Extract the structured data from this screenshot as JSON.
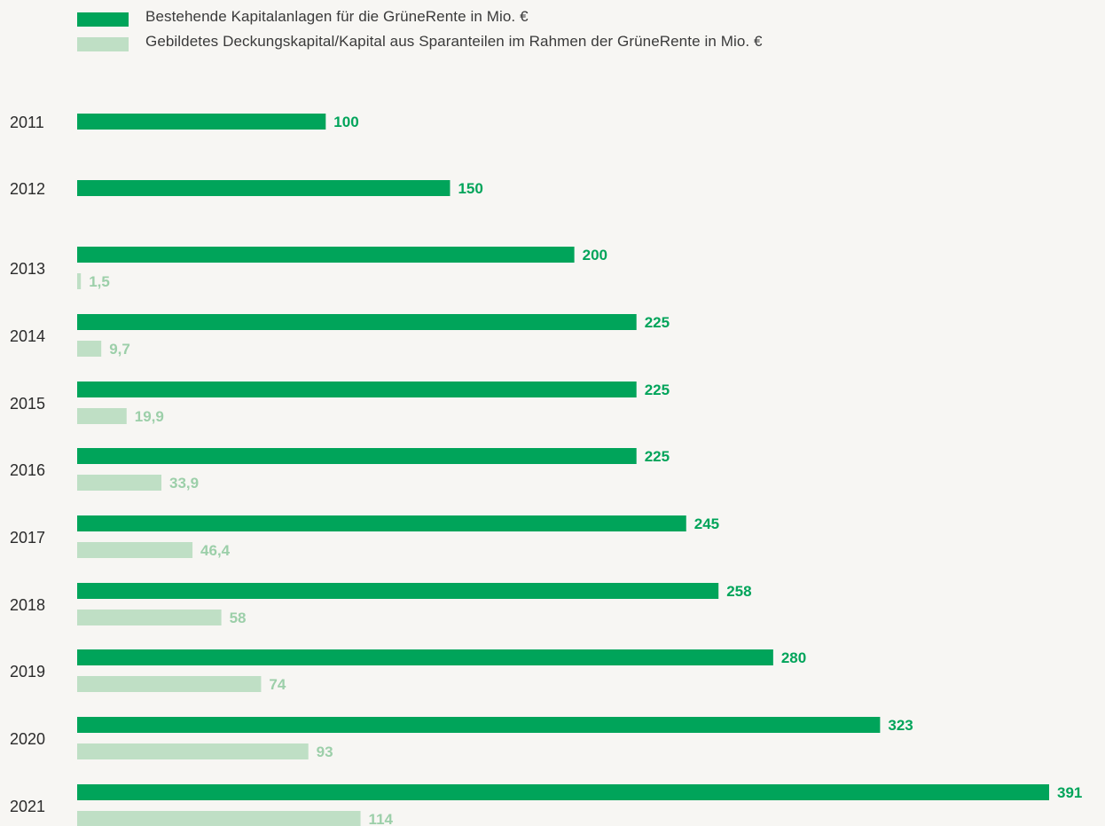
{
  "chart_data": {
    "type": "bar",
    "orientation": "horizontal",
    "categories": [
      "2011",
      "2012",
      "2013",
      "2014",
      "2015",
      "2016",
      "2017",
      "2018",
      "2019",
      "2020",
      "2021"
    ],
    "series": [
      {
        "name": "Bestehende Kapitalanlagen für die GrüneRente in Mio. €",
        "color": "#00a45a",
        "label_color": "#00a45a",
        "values": [
          100,
          150,
          200,
          225,
          225,
          225,
          245,
          258,
          280,
          323,
          391
        ],
        "labels": [
          "100",
          "150",
          "200",
          "225",
          "225",
          "225",
          "245",
          "258",
          "280",
          "323",
          "391"
        ]
      },
      {
        "name": "Gebildetes Deckungskapital/Kapital aus Sparanteilen im Rahmen der GrüneRente in Mio. €",
        "color": "#bfdfc5",
        "label_color": "#9ccfa9",
        "values": [
          null,
          null,
          1.5,
          9.7,
          19.9,
          33.9,
          46.4,
          58,
          74,
          93,
          114
        ],
        "labels": [
          "",
          "",
          "1,5",
          "9,7",
          "19,9",
          "33,9",
          "46,4",
          "58",
          "74",
          "93",
          "114"
        ]
      }
    ],
    "title": "",
    "xlabel": "",
    "ylabel": "",
    "grid": false,
    "legend_position": "top-left"
  }
}
